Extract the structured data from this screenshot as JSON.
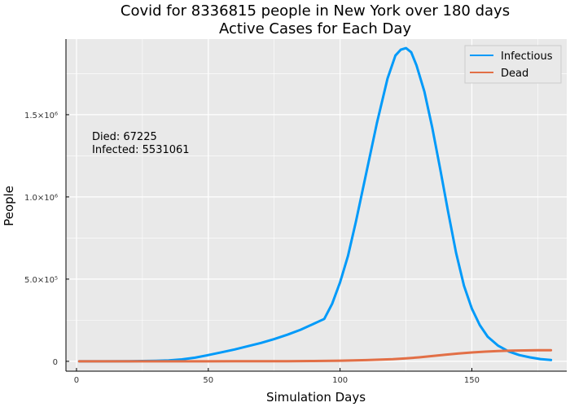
{
  "chart_data": {
    "type": "line",
    "title": "Covid for 8336815 people in New York over 180 days",
    "subtitle": "Active Cases for Each Day",
    "xlabel": "Simulation Days",
    "ylabel": "People",
    "xlim": [
      -4,
      186
    ],
    "ylim": [
      -60000,
      1960000
    ],
    "xticks": [
      0,
      50,
      100,
      150
    ],
    "xtick_labels": [
      "0",
      "50",
      "100",
      "150"
    ],
    "yticks": [
      0,
      500000,
      1000000,
      1500000
    ],
    "ytick_labels": [
      "0",
      "5.0×10⁵",
      "1.0×10⁶",
      "1.5×10⁶"
    ],
    "grid": true,
    "legend_position": "top-right",
    "annotation": [
      "Died: 67225",
      "Infected: 5531061"
    ],
    "series": [
      {
        "name": "Infectious",
        "color": "#009af9",
        "x": [
          1,
          10,
          20,
          30,
          35,
          40,
          45,
          50,
          55,
          60,
          65,
          70,
          75,
          80,
          85,
          90,
          94,
          97,
          100,
          103,
          106,
          110,
          114,
          118,
          121,
          123,
          125,
          127,
          129,
          132,
          135,
          138,
          141,
          144,
          147,
          150,
          153,
          156,
          160,
          164,
          168,
          172,
          176,
          180
        ],
        "y": [
          0,
          0,
          500,
          3000,
          6000,
          12000,
          22000,
          38000,
          55000,
          72000,
          92000,
          112000,
          135000,
          162000,
          192000,
          228000,
          258000,
          350000,
          480000,
          640000,
          850000,
          1150000,
          1450000,
          1720000,
          1860000,
          1895000,
          1905000,
          1880000,
          1800000,
          1640000,
          1420000,
          1170000,
          910000,
          660000,
          460000,
          320000,
          220000,
          150000,
          95000,
          60000,
          38000,
          24000,
          14000,
          8000
        ]
      },
      {
        "name": "Dead",
        "color": "#e26f46",
        "x": [
          1,
          20,
          40,
          60,
          80,
          90,
          100,
          110,
          120,
          125,
          130,
          135,
          140,
          145,
          150,
          155,
          160,
          165,
          170,
          175,
          180
        ],
        "y": [
          0,
          0,
          100,
          300,
          1000,
          2000,
          4000,
          7500,
          13000,
          17500,
          24000,
          32000,
          40000,
          47500,
          54000,
          59000,
          62500,
          64800,
          66200,
          67000,
          67225
        ]
      }
    ]
  }
}
